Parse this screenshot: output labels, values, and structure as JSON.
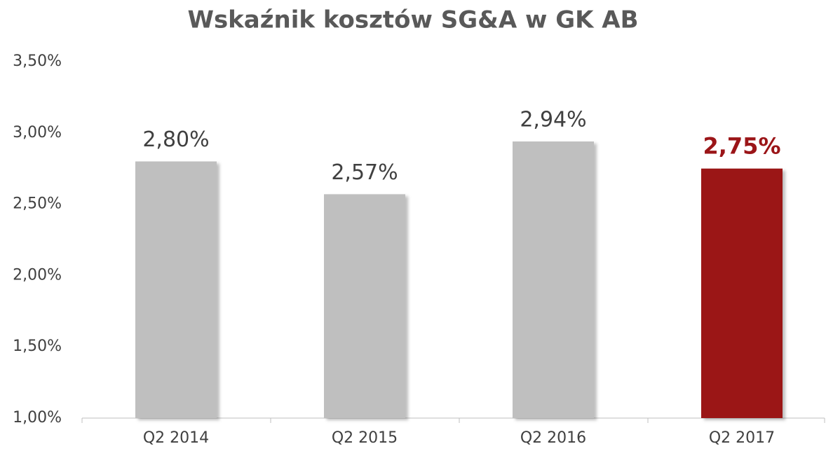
{
  "chart_data": {
    "type": "bar",
    "title": "Wskaźnik kosztów SG&A w GK AB",
    "categories": [
      "Q2 2014",
      "Q2 2015",
      "Q2 2016",
      "Q2 2017"
    ],
    "values": [
      2.8,
      2.57,
      2.94,
      2.75
    ],
    "value_labels": [
      "2,80%",
      "2,57%",
      "2,94%",
      "2,75%"
    ],
    "colors": [
      "#bfbfbf",
      "#bfbfbf",
      "#bfbfbf",
      "#9b1518"
    ],
    "ylim": [
      1.0,
      3.5
    ],
    "yticks": [
      {
        "value": 1.0,
        "label": "1,00%"
      },
      {
        "value": 1.5,
        "label": "1,50%"
      },
      {
        "value": 2.0,
        "label": "2,00%"
      },
      {
        "value": 2.5,
        "label": "2,50%"
      },
      {
        "value": 3.0,
        "label": "3,00%"
      },
      {
        "value": 3.5,
        "label": "3,50%"
      }
    ],
    "grid": false
  }
}
